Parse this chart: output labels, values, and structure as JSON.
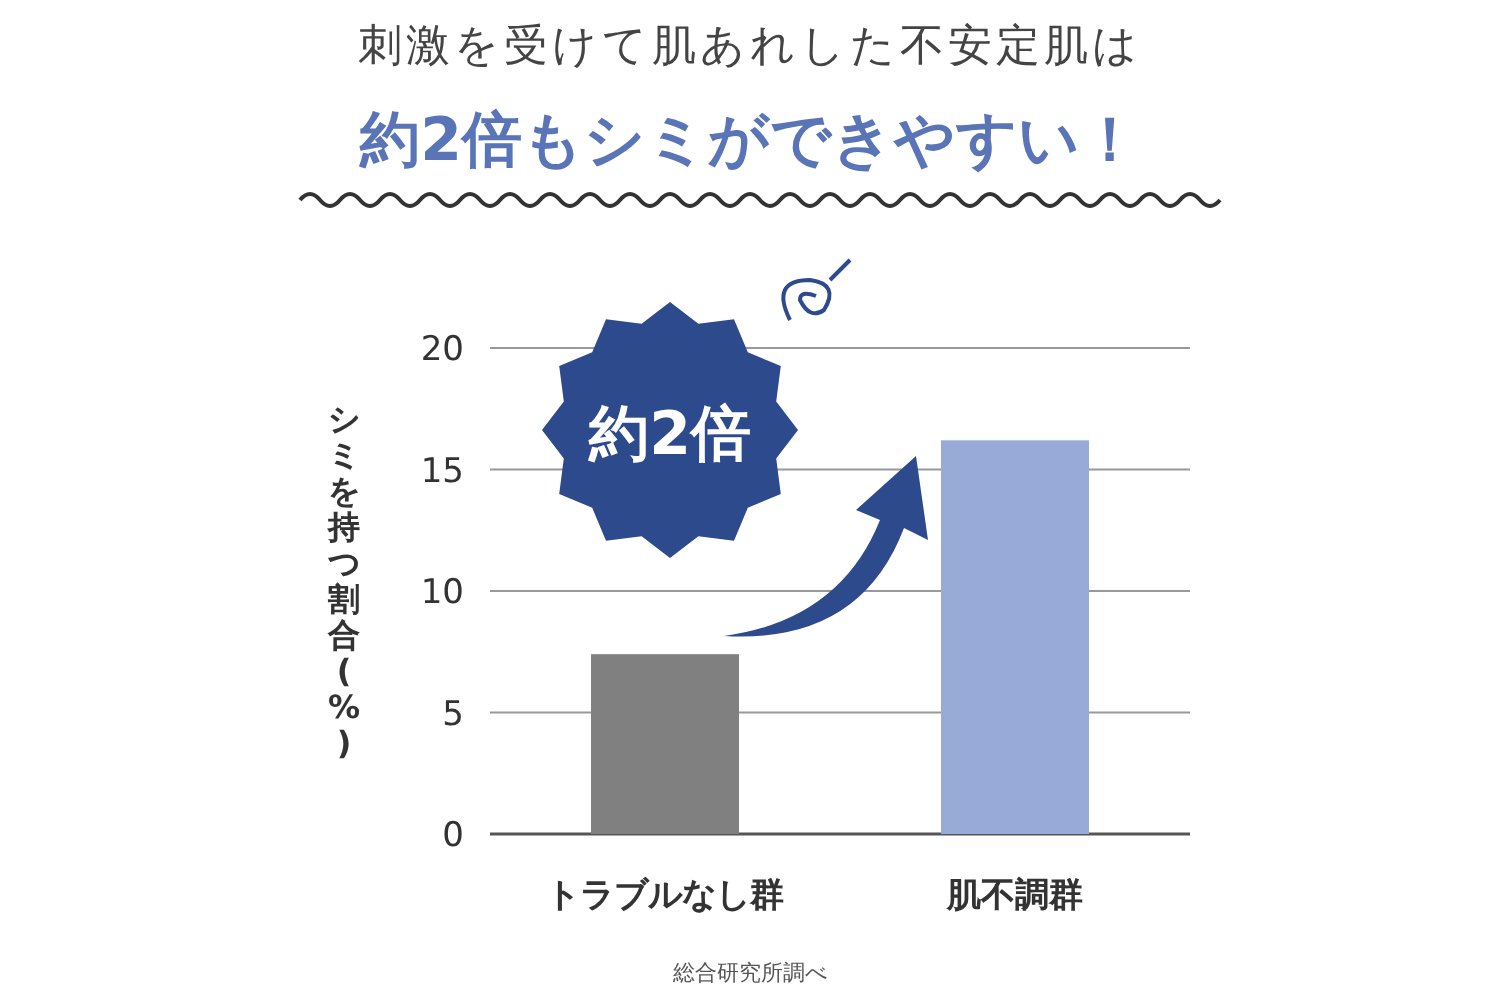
{
  "chart_data": {
    "type": "bar",
    "title": "刺激を受けて肌あれした不安定肌は",
    "subtitle": "約2倍もシミができやすい！",
    "ylabel": "シミを持つ割合(%)",
    "categories": [
      "トラブルなし群",
      "肌不調群"
    ],
    "values": [
      7.4,
      16.2
    ],
    "colors": [
      "#808080",
      "#97aad8"
    ],
    "ylim": [
      0,
      20
    ],
    "yticks": [
      0,
      5,
      10,
      15,
      20
    ],
    "grid": "y",
    "annotations": [
      "約2倍",
      "総合研究所調べ"
    ]
  }
}
